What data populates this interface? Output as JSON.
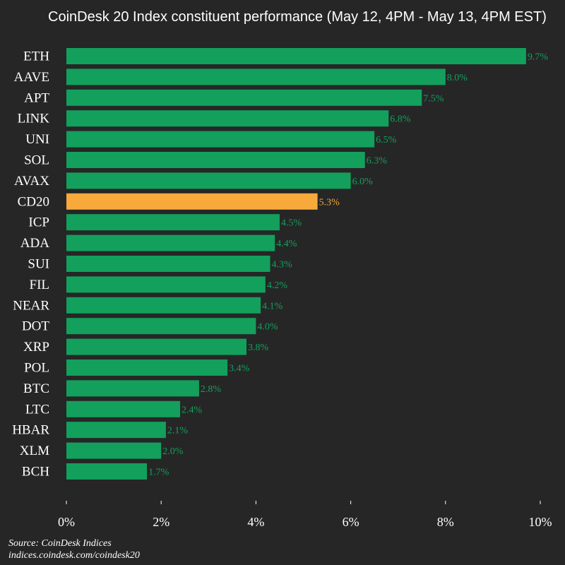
{
  "chart_data": {
    "type": "bar",
    "orientation": "horizontal",
    "title": "CoinDesk 20 Index constituent performance (May 12, 4PM - May 13, 4PM EST)",
    "categories": [
      "ETH",
      "AAVE",
      "APT",
      "LINK",
      "UNI",
      "SOL",
      "AVAX",
      "CD20",
      "ICP",
      "ADA",
      "SUI",
      "FIL",
      "NEAR",
      "DOT",
      "XRP",
      "POL",
      "BTC",
      "LTC",
      "HBAR",
      "XLM",
      "BCH"
    ],
    "values": [
      9.7,
      8.0,
      7.5,
      6.8,
      6.5,
      6.3,
      6.0,
      5.3,
      4.5,
      4.4,
      4.3,
      4.2,
      4.1,
      4.0,
      3.8,
      3.4,
      2.8,
      2.4,
      2.1,
      2.0,
      1.7
    ],
    "value_labels": [
      "9.7%",
      "8.0%",
      "7.5%",
      "6.8%",
      "6.5%",
      "6.3%",
      "6.0%",
      "5.3%",
      "4.5%",
      "4.4%",
      "4.3%",
      "4.2%",
      "4.1%",
      "4.0%",
      "3.8%",
      "3.4%",
      "2.8%",
      "2.4%",
      "2.1%",
      "2.0%",
      "1.7%"
    ],
    "highlight": "CD20",
    "xlim": [
      0,
      10
    ],
    "xticks": [
      0,
      2,
      4,
      6,
      8,
      10
    ],
    "xtick_labels": [
      "0%",
      "2%",
      "4%",
      "6%",
      "8%",
      "10%"
    ],
    "grid": false,
    "colors": {
      "bar": "#12a05c",
      "highlight": "#f8a93c",
      "background": "#262626",
      "text": "#ffffff"
    }
  },
  "source": {
    "line1": "Source: CoinDesk Indices",
    "line2": "indices.coindesk.com/coindesk20"
  }
}
